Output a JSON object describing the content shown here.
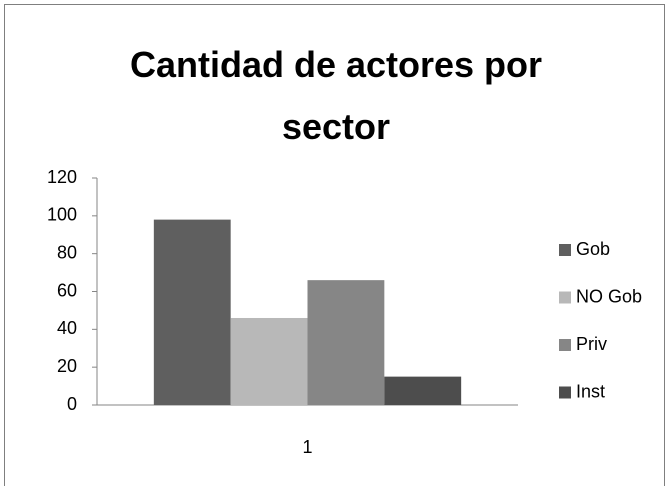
{
  "chart_data": {
    "type": "bar",
    "title": "Cantidad de actores por sector",
    "categories": [
      "1"
    ],
    "series": [
      {
        "name": "Gob",
        "color": "#5f5f5f",
        "values": [
          98
        ]
      },
      {
        "name": "NO Gob",
        "color": "#b8b8b8",
        "values": [
          46
        ]
      },
      {
        "name": "Priv",
        "color": "#868686",
        "values": [
          66
        ]
      },
      {
        "name": "Inst",
        "color": "#4d4d4d",
        "values": [
          15
        ]
      }
    ],
    "ylim": [
      0,
      120
    ],
    "yticks": [
      0,
      20,
      40,
      60,
      80,
      100,
      120
    ],
    "grid": false,
    "legend": "right"
  }
}
